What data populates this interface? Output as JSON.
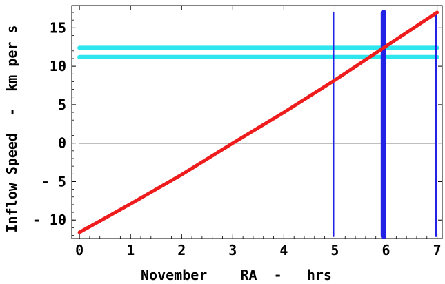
{
  "chart_data": {
    "type": "line",
    "title": "",
    "xlabel": "November    RA  -   hrs",
    "ylabel": "Inflow Speed  -  km per s",
    "xlim": [
      -0.15,
      7.1
    ],
    "ylim": [
      -12.4,
      17.9
    ],
    "x_ticks": [
      0,
      1,
      2,
      3,
      4,
      5,
      6,
      7
    ],
    "x_tick_labels": [
      "0",
      "1",
      "2",
      "3",
      "4",
      "5",
      "6",
      "7"
    ],
    "y_ticks": [
      -10,
      -5,
      0,
      5,
      10,
      15
    ],
    "y_tick_labels": [
      "- 10",
      "- 5",
      "0",
      "5",
      "10",
      "15"
    ],
    "grid": false,
    "legend": "none",
    "series": [
      {
        "role": "main-curve",
        "color": "#ee1c1c",
        "points": [
          [
            0,
            -11.6
          ],
          [
            1,
            -7.9
          ],
          [
            2,
            -4.1
          ],
          [
            3,
            0.0
          ],
          [
            4,
            4.0
          ],
          [
            5,
            8.2
          ],
          [
            6,
            12.6
          ],
          [
            7,
            17.0
          ]
        ]
      }
    ],
    "horizontal_lines": [
      {
        "role": "zero-line",
        "y": 0,
        "x_range": [
          0,
          7
        ],
        "color": "#000000",
        "width": "thin"
      },
      {
        "role": "upper-band",
        "y": 12.4,
        "x_range": [
          0,
          7
        ],
        "color": "#2ee6ee",
        "width": "thick"
      },
      {
        "role": "lower-band",
        "y": 11.2,
        "x_range": [
          0,
          7
        ],
        "color": "#2ee6ee",
        "width": "thick"
      }
    ],
    "vertical_lines": [
      {
        "role": "marker-5h",
        "x": 4.97,
        "y_range": [
          -12.1,
          17.0
        ],
        "color": "#2222e6",
        "width": "thin"
      },
      {
        "role": "marker-6h",
        "x": 5.95,
        "y_range": [
          -12.1,
          17.0
        ],
        "color": "#2222e6",
        "width": "thick"
      },
      {
        "role": "marker-7h",
        "x": 6.98,
        "y_range": [
          -12.1,
          17.0
        ],
        "color": "#2222e6",
        "width": "thin"
      }
    ]
  }
}
